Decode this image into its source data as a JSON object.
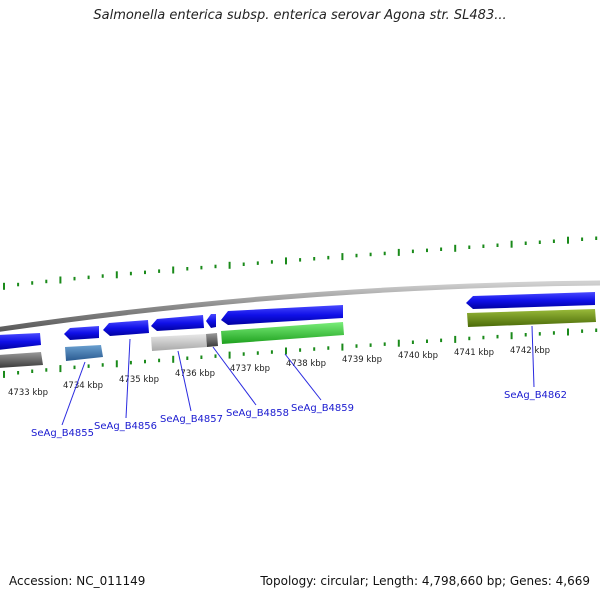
{
  "title": "Salmonella enterica subsp. enterica serovar Agona str. SL483...",
  "footer": {
    "accession": "Accession: NC_011149",
    "stats": "Topology: circular; Length: 4,798,660 bp; Genes: 4,669"
  },
  "colors": {
    "forward_gene": "#1010e8",
    "reverse_gene_dark": "#5a5a5a",
    "reverse_gene_steel": "#3c78b0",
    "reverse_gene_light": "#c8c8c8",
    "reverse_gene_green": "#3ccc3c",
    "reverse_gene_olive": "#6a8a18",
    "tick_green": "#1a8a1a",
    "backbone": "#9a9a9a",
    "label_line": "#2a2ae0"
  },
  "scale_labels": [
    "4733 kbp",
    "4734 kbp",
    "4735 kbp",
    "4736 kbp",
    "4737 kbp",
    "4738 kbp",
    "4739 kbp",
    "4740 kbp",
    "4741 kbp",
    "4742 kbp"
  ],
  "gene_labels": [
    "SeAg_B4855",
    "SeAg_B4856",
    "SeAg_B4857",
    "SeAg_B4858",
    "SeAg_B4859",
    "SeAg_B4862"
  ]
}
